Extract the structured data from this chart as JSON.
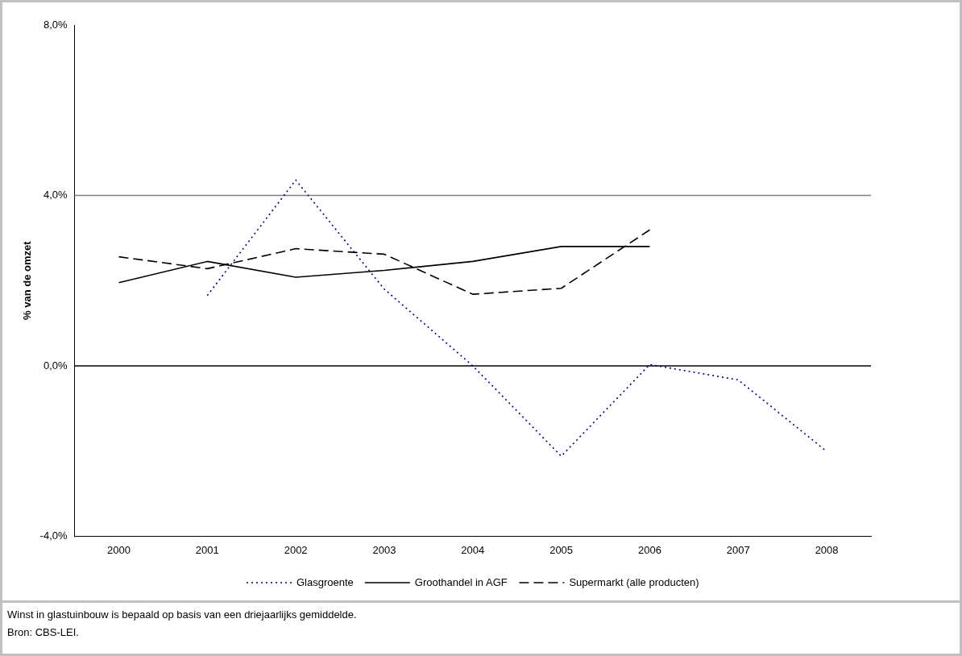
{
  "chart_data": {
    "type": "line",
    "ylabel": "% van de omzet",
    "categories": [
      "2000",
      "2001",
      "2002",
      "2003",
      "2004",
      "2005",
      "2006",
      "2007",
      "2008"
    ],
    "series": [
      {
        "name": "Glasgroente",
        "color": "#000080",
        "line_style": "dotted",
        "values": [
          null,
          1.65,
          4.36,
          1.8,
          0.0,
          -2.12,
          0.03,
          -0.33,
          -2.01
        ]
      },
      {
        "name": "Groothandel in AGF",
        "color": "#000000",
        "line_style": "solid",
        "values": [
          1.95,
          2.45,
          2.08,
          2.24,
          2.45,
          2.8,
          2.8,
          null,
          null
        ]
      },
      {
        "name": "Supermarkt (alle producten)",
        "color": "#000000",
        "line_style": "dashed",
        "values": [
          2.56,
          2.28,
          2.75,
          2.62,
          1.68,
          1.82,
          3.19,
          null,
          null
        ]
      }
    ],
    "ylim": [
      -4,
      8
    ],
    "yticks": [
      {
        "value": -4,
        "label": "-4,0%"
      },
      {
        "value": 0,
        "label": "0,0%"
      },
      {
        "value": 4,
        "label": "4,0%"
      },
      {
        "value": 8,
        "label": "8,0%"
      }
    ],
    "ref_lines": [
      {
        "axis": "y",
        "value": 4,
        "color": "#808080"
      },
      {
        "axis": "y",
        "value": 0,
        "color": "#000000"
      }
    ],
    "legend": "bottom",
    "marker": "none",
    "annotations": [
      "Winst in glastuinbouw is bepaald op basis van een driejaarlijks gemiddelde.",
      "Bron: CBS-LEI."
    ]
  }
}
